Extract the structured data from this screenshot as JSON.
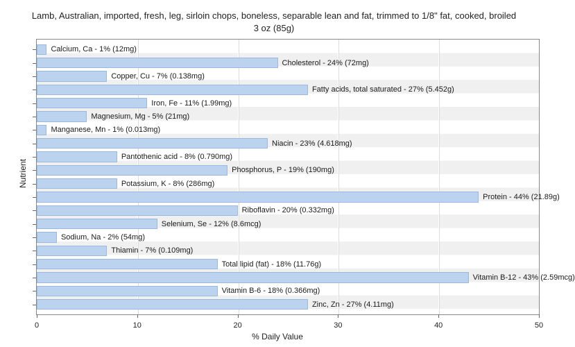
{
  "chart": {
    "type": "bar-horizontal",
    "title_line1": "Lamb, Australian, imported, fresh, leg, sirloin chops, boneless, separable lean and fat, trimmed to 1/8\" fat, cooked, broiled",
    "title_line2": "3 oz (85g)",
    "title_fontsize": 13,
    "xlabel": "% Daily Value",
    "ylabel": "Nutrient",
    "label_fontsize": 12,
    "tick_fontsize": 11,
    "bar_label_fontsize": 11,
    "xlim": [
      0,
      50
    ],
    "xtick_step": 10,
    "xticks": [
      0,
      10,
      20,
      30,
      40,
      50
    ],
    "background_color": "#ffffff",
    "plot_bg_stripe_a": "#ffffff",
    "plot_bg_stripe_b": "#f0f0f0",
    "bar_fill": "#bcd3f0",
    "bar_border": "#9ab8e0",
    "grid_color": "#dcdcdc",
    "axis_color": "#888888",
    "text_color": "#1a1a1a",
    "bars": [
      {
        "value": 1,
        "label": "Calcium, Ca - 1% (12mg)"
      },
      {
        "value": 24,
        "label": "Cholesterol - 24% (72mg)"
      },
      {
        "value": 7,
        "label": "Copper, Cu - 7% (0.138mg)"
      },
      {
        "value": 27,
        "label": "Fatty acids, total saturated - 27% (5.452g)"
      },
      {
        "value": 11,
        "label": "Iron, Fe - 11% (1.99mg)"
      },
      {
        "value": 5,
        "label": "Magnesium, Mg - 5% (21mg)"
      },
      {
        "value": 1,
        "label": "Manganese, Mn - 1% (0.013mg)"
      },
      {
        "value": 23,
        "label": "Niacin - 23% (4.618mg)"
      },
      {
        "value": 8,
        "label": "Pantothenic acid - 8% (0.790mg)"
      },
      {
        "value": 19,
        "label": "Phosphorus, P - 19% (190mg)"
      },
      {
        "value": 8,
        "label": "Potassium, K - 8% (286mg)"
      },
      {
        "value": 44,
        "label": "Protein - 44% (21.89g)"
      },
      {
        "value": 20,
        "label": "Riboflavin - 20% (0.332mg)"
      },
      {
        "value": 12,
        "label": "Selenium, Se - 12% (8.6mcg)"
      },
      {
        "value": 2,
        "label": "Sodium, Na - 2% (54mg)"
      },
      {
        "value": 7,
        "label": "Thiamin - 7% (0.109mg)"
      },
      {
        "value": 18,
        "label": "Total lipid (fat) - 18% (11.76g)"
      },
      {
        "value": 43,
        "label": "Vitamin B-12 - 43% (2.59mcg)"
      },
      {
        "value": 18,
        "label": "Vitamin B-6 - 18% (0.366mg)"
      },
      {
        "value": 27,
        "label": "Zinc, Zn - 27% (4.11mg)"
      }
    ]
  }
}
